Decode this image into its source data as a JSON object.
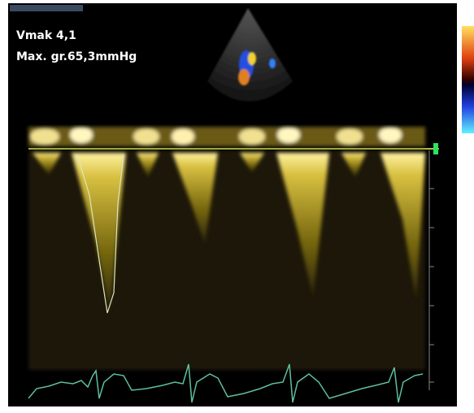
{
  "overlay": {
    "velocity": "Vmak 4,1",
    "gradient": "Max. gr.65,3mmHg"
  }
}
